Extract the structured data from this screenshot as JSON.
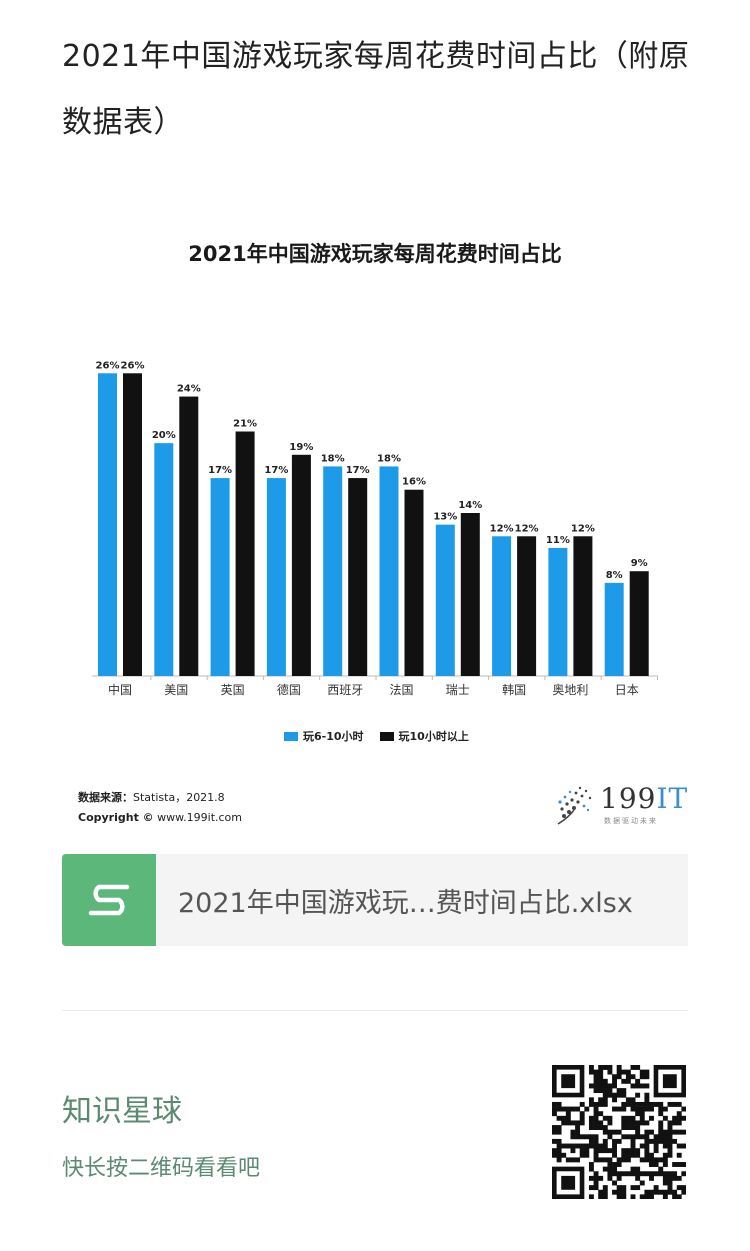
{
  "post": {
    "title": "2021年中国游戏玩家每周花费时间占比（附原数据表）"
  },
  "chart_data": {
    "type": "bar",
    "title": "2021年中国游戏玩家每周花费时间占比",
    "categories": [
      "中国",
      "美国",
      "英国",
      "德国",
      "西班牙",
      "法国",
      "瑞士",
      "韩国",
      "奥地利",
      "日本"
    ],
    "series": [
      {
        "name": "玩6-10小时",
        "color": "#1e9be8",
        "values": [
          26,
          20,
          17,
          17,
          18,
          18,
          13,
          12,
          11,
          8
        ]
      },
      {
        "name": "玩10小时以上",
        "color": "#111111",
        "values": [
          26,
          24,
          21,
          19,
          17,
          16,
          14,
          12,
          12,
          9
        ]
      }
    ],
    "value_suffix": "%",
    "ylim": [
      0,
      28
    ],
    "grid": false,
    "legend_position": "bottom"
  },
  "source": {
    "label": "数据来源：",
    "value": "Statista，2021.8",
    "copyright_label": "Copyright ©",
    "copyright_value": "www.199it.com"
  },
  "brand": {
    "number": "199",
    "it": "IT",
    "tagline": "数据驱动未来"
  },
  "attachment": {
    "icon": "spreadsheet-s-icon",
    "filename": "2021年中国游戏玩…费时间占比.xlsx"
  },
  "footer": {
    "title": "知识星球",
    "subtitle": "快长按二维码看看吧"
  },
  "qr": {
    "icon": "qr-code-icon"
  }
}
